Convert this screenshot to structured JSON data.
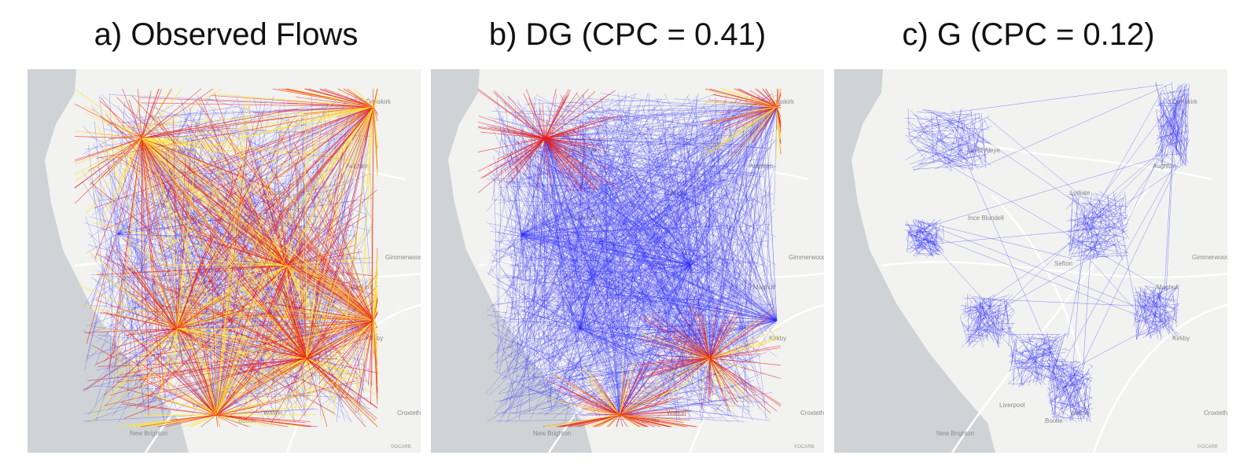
{
  "panels": [
    {
      "id": "a",
      "title": "a) Observed Flows",
      "mode": "observed",
      "seed": 11
    },
    {
      "id": "b",
      "title": "b) DG (CPC = 0.41)",
      "mode": "dg",
      "seed": 23
    },
    {
      "id": "c",
      "title": "c) G (CPC = 0.12)",
      "mode": "g",
      "seed": 37
    }
  ],
  "place_labels": [
    "Crest Aleye",
    "Ormskirk",
    "Aughton",
    "Lydiate",
    "Ince Blundell",
    "Sefton",
    "Maghull",
    "Kirkby",
    "Bootle",
    "Walton",
    "New Brighton",
    "Liverpool",
    "Croxteth",
    "Gimmerwood"
  ],
  "attribution": "©OCARB",
  "colors": {
    "low": "#2a2aff",
    "mid": "#e8201e",
    "high": "#ffe53a",
    "land": "#f2f2f0",
    "sea": "#cfd3d6",
    "road": "#ffffff"
  }
}
